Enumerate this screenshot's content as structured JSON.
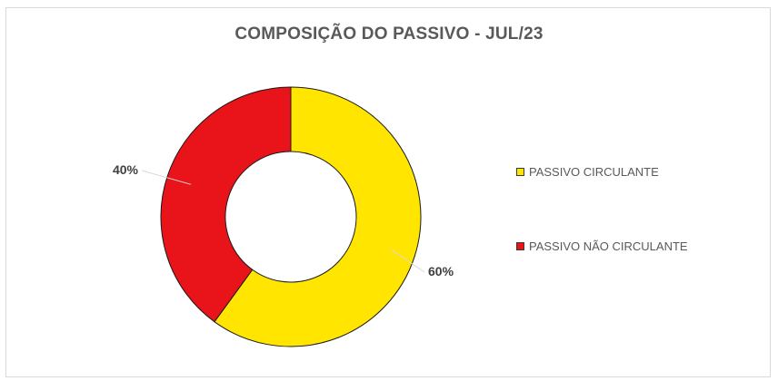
{
  "chart_data": {
    "type": "pie",
    "variant": "donut",
    "title": "COMPOSIÇÃO DO PASSIVO - JUL/23",
    "categories": [
      "PASSIVO CIRCULANTE",
      "PASSIVO NÃO CIRCULANTE"
    ],
    "values": [
      60,
      40
    ],
    "data_labels": [
      "60%",
      "40%"
    ],
    "colors": [
      "#FFE500",
      "#E8141A"
    ],
    "legend_position": "right",
    "start_angle_deg": 0,
    "direction": "clockwise"
  }
}
